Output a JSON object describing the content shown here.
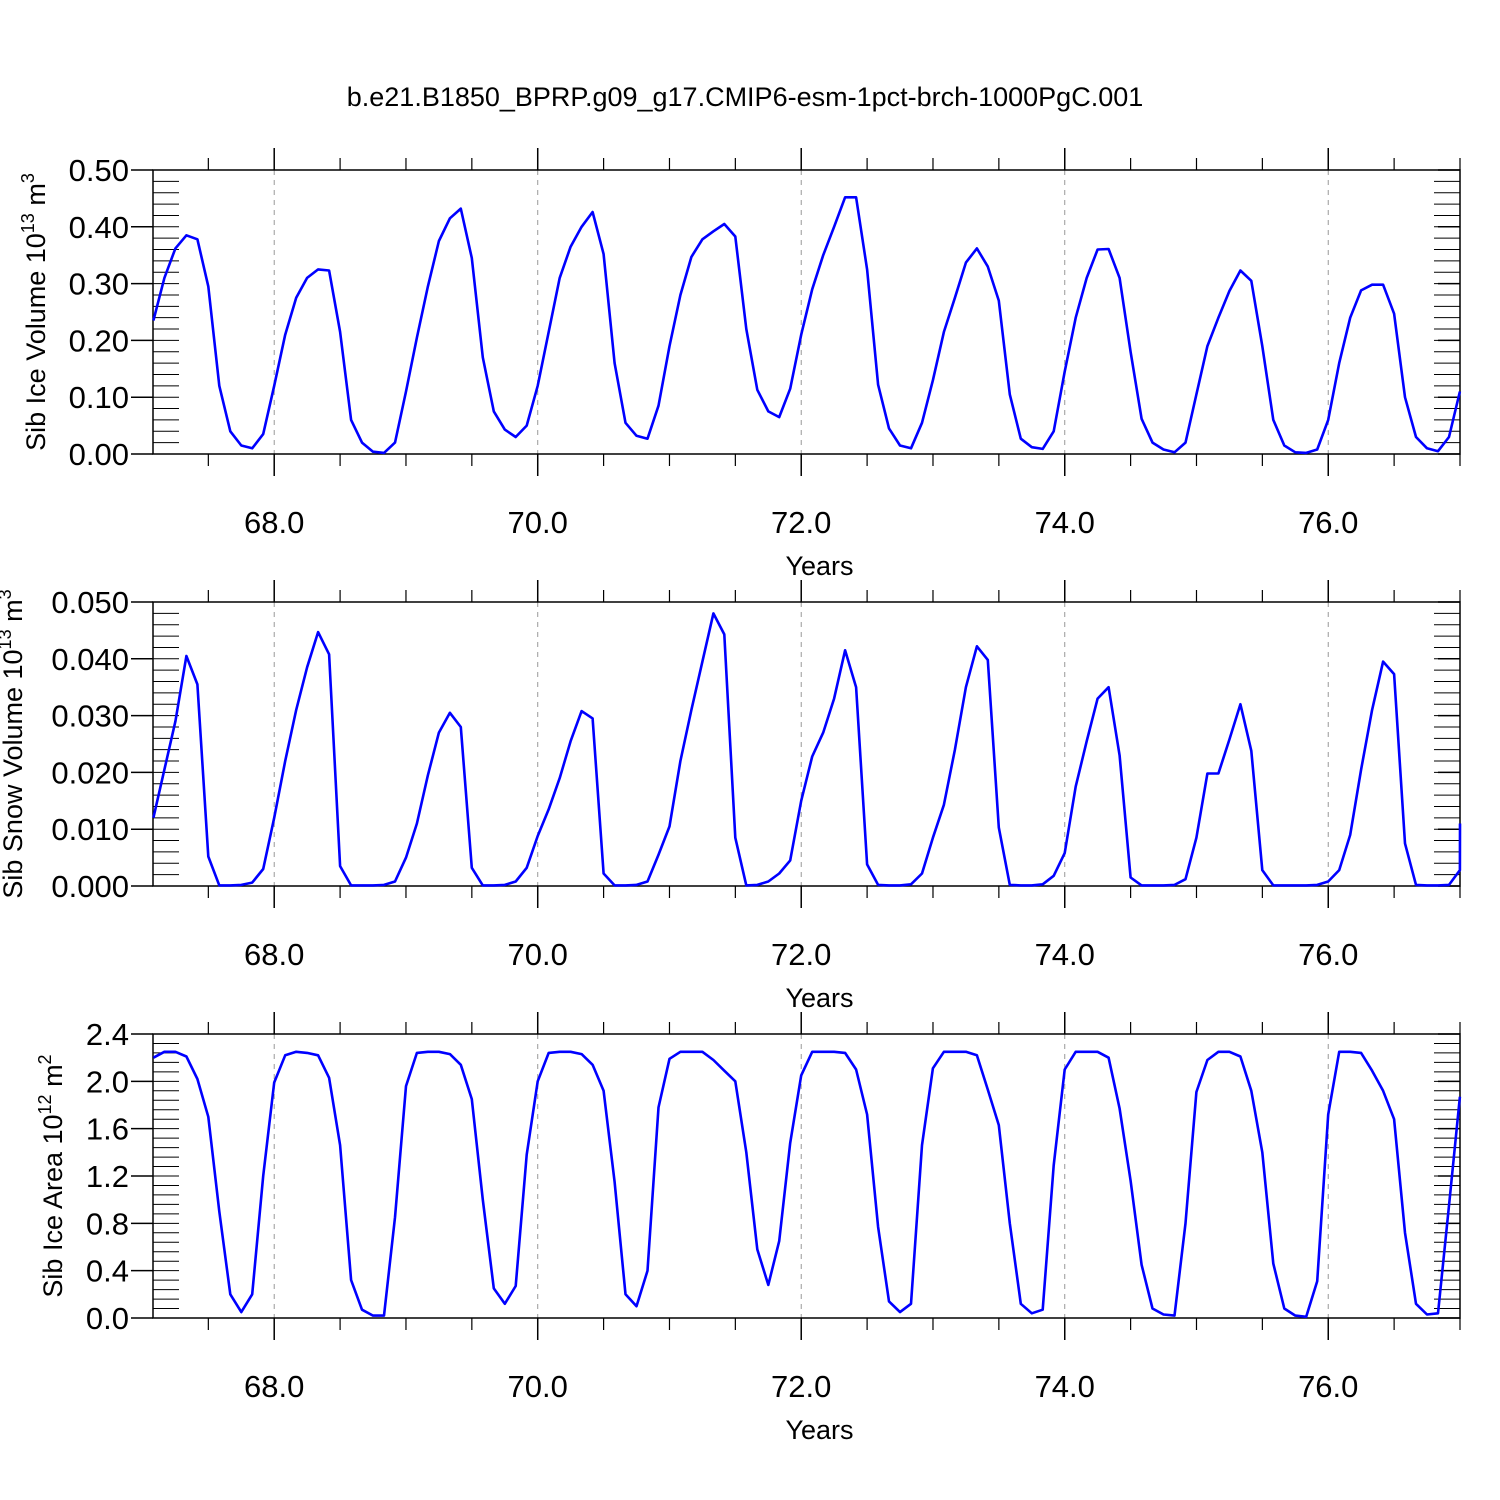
{
  "figure": {
    "title": "b.e21.B1850_BPRP.g09_g17.CMIP6-esm-1pct-brch-1000PgC.001",
    "line_color": "#0000ff",
    "grid_color": "#999999"
  },
  "chart_data": [
    {
      "type": "line",
      "xlabel": "Years",
      "ylabel": {
        "text": "Sib Ice Volume 10",
        "exp": "13",
        "unit": " m",
        "unit_exp": "3"
      },
      "xlim": [
        67.08,
        77.0
      ],
      "ylim": [
        0,
        0.5
      ],
      "x_ticks": [
        68,
        70,
        72,
        74,
        76
      ],
      "x_tick_labels": [
        "68.0",
        "70.0",
        "72.0",
        "74.0",
        "76.0"
      ],
      "y_ticks": [
        0,
        0.1,
        0.2,
        0.3,
        0.4,
        0.5
      ],
      "y_tick_labels": [
        "0.00",
        "0.10",
        "0.20",
        "0.30",
        "0.40",
        "0.50"
      ],
      "y_minor": 0.02,
      "grid": "vertical dashed at major x ticks",
      "x_start": 67.0833,
      "x_step": 0.08333,
      "series": [
        {
          "values": [
            0.235,
            0.31,
            0.362,
            0.385,
            0.378,
            0.295,
            0.12,
            0.04,
            0.015,
            0.01,
            0.035,
            0.12,
            0.21,
            0.275,
            0.31,
            0.325,
            0.323,
            0.215,
            0.06,
            0.02,
            0.004,
            0.002,
            0.02,
            0.11,
            0.205,
            0.295,
            0.375,
            0.415,
            0.432,
            0.345,
            0.17,
            0.075,
            0.043,
            0.03,
            0.05,
            0.12,
            0.215,
            0.31,
            0.365,
            0.4,
            0.426,
            0.352,
            0.16,
            0.055,
            0.032,
            0.027,
            0.085,
            0.19,
            0.28,
            0.347,
            0.378,
            0.392,
            0.405,
            0.383,
            0.22,
            0.113,
            0.075,
            0.065,
            0.115,
            0.21,
            0.29,
            0.35,
            0.4,
            0.452,
            0.452,
            0.325,
            0.122,
            0.045,
            0.015,
            0.01,
            0.055,
            0.13,
            0.215,
            0.275,
            0.337,
            0.362,
            0.33,
            0.27,
            0.105,
            0.027,
            0.012,
            0.009,
            0.04,
            0.145,
            0.24,
            0.31,
            0.36,
            0.361,
            0.31,
            0.18,
            0.062,
            0.02,
            0.008,
            0.003,
            0.02,
            0.105,
            0.19,
            0.24,
            0.287,
            0.323,
            0.305,
            0.19,
            0.06,
            0.015,
            0.003,
            0.002,
            0.008,
            0.06,
            0.16,
            0.24,
            0.288,
            0.298,
            0.298,
            0.247,
            0.1,
            0.03,
            0.01,
            0.005,
            0.03,
            0.11
          ]
        }
      ]
    },
    {
      "type": "line",
      "xlabel": "Years",
      "ylabel": {
        "text": "Sib Snow Volume 10",
        "exp": "13",
        "unit": " m",
        "unit_exp": "3"
      },
      "xlim": [
        67.08,
        77.0
      ],
      "ylim": [
        0,
        0.05
      ],
      "x_ticks": [
        68,
        70,
        72,
        74,
        76
      ],
      "x_tick_labels": [
        "68.0",
        "70.0",
        "72.0",
        "74.0",
        "76.0"
      ],
      "y_ticks": [
        0,
        0.01,
        0.02,
        0.03,
        0.04,
        0.05
      ],
      "y_tick_labels": [
        "0.000",
        "0.010",
        "0.020",
        "0.030",
        "0.040",
        "0.050"
      ],
      "y_minor": 0.002,
      "grid": "vertical dashed at major x ticks",
      "x_start": 67.0833,
      "x_step": 0.08333,
      "series": [
        {
          "values": [
            0.012,
            0.0205,
            0.029,
            0.0405,
            0.0355,
            0.0052,
            0.0001,
            0.0001,
            0.0002,
            0.0006,
            0.003,
            0.012,
            0.022,
            0.031,
            0.0385,
            0.0447,
            0.0408,
            0.0035,
            0.0001,
            0.0001,
            0.0001,
            0.0002,
            0.0008,
            0.005,
            0.011,
            0.0195,
            0.027,
            0.0305,
            0.028,
            0.0032,
            0.0001,
            0.0001,
            0.0002,
            0.0008,
            0.0032,
            0.0088,
            0.0135,
            0.019,
            0.0255,
            0.0308,
            0.0295,
            0.0022,
            0.0001,
            0.0001,
            0.0002,
            0.0008,
            0.0055,
            0.0105,
            0.022,
            0.031,
            0.0395,
            0.048,
            0.0443,
            0.0085,
            0.0001,
            0.0002,
            0.0008,
            0.0022,
            0.0045,
            0.015,
            0.0228,
            0.027,
            0.033,
            0.0415,
            0.035,
            0.0038,
            0.0002,
            0.0001,
            0.0001,
            0.0003,
            0.0022,
            0.0085,
            0.0143,
            0.024,
            0.035,
            0.0422,
            0.0398,
            0.0103,
            0.0002,
            0.0001,
            0.0001,
            0.0003,
            0.0018,
            0.0058,
            0.0175,
            0.0255,
            0.033,
            0.035,
            0.023,
            0.0015,
            0.0001,
            0.0001,
            0.0001,
            0.0002,
            0.0012,
            0.0085,
            0.0198,
            0.0198,
            0.0258,
            0.032,
            0.0238,
            0.0028,
            0.0001,
            0.0001,
            0.0001,
            0.0001,
            0.0002,
            0.0008,
            0.0028,
            0.009,
            0.0205,
            0.031,
            0.0395,
            0.0373,
            0.0075,
            0.0002,
            0.0001,
            0.0001,
            0.0002,
            0.0028,
            0.011
          ]
        }
      ]
    },
    {
      "type": "line",
      "xlabel": "Years",
      "ylabel": {
        "text": "Sib Ice Area 10",
        "exp": "12",
        "unit": " m",
        "unit_exp": "2"
      },
      "xlim": [
        67.08,
        77.0
      ],
      "ylim": [
        0,
        2.4
      ],
      "x_ticks": [
        68,
        70,
        72,
        74,
        76
      ],
      "x_tick_labels": [
        "68.0",
        "70.0",
        "72.0",
        "74.0",
        "76.0"
      ],
      "y_ticks": [
        0,
        0.4,
        0.8,
        1.2,
        1.6,
        2.0,
        2.4
      ],
      "y_tick_labels": [
        "0.0",
        "0.4",
        "0.8",
        "1.2",
        "1.6",
        "2.0",
        "2.4"
      ],
      "y_minor": 0.08,
      "grid": "vertical dashed at major x ticks",
      "x_start": 67.0833,
      "x_step": 0.08333,
      "series": [
        {
          "values": [
            2.2,
            2.25,
            2.25,
            2.21,
            2.02,
            1.7,
            0.9,
            0.2,
            0.05,
            0.2,
            1.2,
            1.99,
            2.22,
            2.25,
            2.24,
            2.22,
            2.03,
            1.46,
            0.32,
            0.07,
            0.02,
            0.02,
            0.85,
            1.96,
            2.24,
            2.25,
            2.25,
            2.23,
            2.14,
            1.85,
            1.0,
            0.25,
            0.12,
            0.27,
            1.38,
            2.0,
            2.24,
            2.25,
            2.25,
            2.23,
            2.14,
            1.92,
            1.15,
            0.2,
            0.1,
            0.4,
            1.78,
            2.19,
            2.25,
            2.25,
            2.25,
            2.18,
            2.09,
            2.0,
            1.4,
            0.58,
            0.28,
            0.65,
            1.48,
            2.05,
            2.25,
            2.25,
            2.25,
            2.24,
            2.1,
            1.72,
            0.77,
            0.14,
            0.05,
            0.12,
            1.46,
            2.11,
            2.25,
            2.25,
            2.25,
            2.22,
            1.93,
            1.63,
            0.8,
            0.12,
            0.04,
            0.07,
            1.29,
            2.1,
            2.25,
            2.25,
            2.25,
            2.2,
            1.77,
            1.16,
            0.45,
            0.08,
            0.03,
            0.02,
            0.8,
            1.91,
            2.18,
            2.25,
            2.25,
            2.21,
            1.92,
            1.4,
            0.46,
            0.08,
            0.02,
            0.01,
            0.31,
            1.72,
            2.25,
            2.25,
            2.24,
            2.09,
            1.92,
            1.68,
            0.72,
            0.12,
            0.03,
            0.04,
            0.95,
            1.87
          ]
        }
      ]
    }
  ]
}
